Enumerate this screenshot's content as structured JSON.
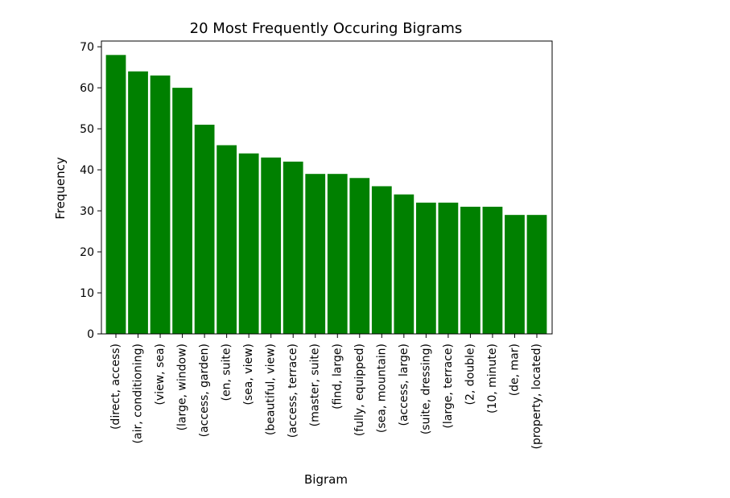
{
  "chart_data": {
    "type": "bar",
    "title": "20 Most Frequently Occuring Bigrams",
    "xlabel": "Bigram",
    "ylabel": "Frequency",
    "ylim": [
      0,
      71.4
    ],
    "yticks": [
      0,
      10,
      20,
      30,
      40,
      50,
      60,
      70
    ],
    "grid": false,
    "legend": "none",
    "bar_color": "#008000",
    "categories": [
      "(direct, access)",
      "(air, conditioning)",
      "(view, sea)",
      "(large, window)",
      "(access, garden)",
      "(en, suite)",
      "(sea, view)",
      "(beautiful, view)",
      "(access, terrace)",
      "(master, suite)",
      "(find, large)",
      "(fully, equipped)",
      "(sea, mountain)",
      "(access, large)",
      "(suite, dressing)",
      "(large, terrace)",
      "(2, double)",
      "(10, minute)",
      "(de, mar)",
      "(property, located)"
    ],
    "values": [
      68,
      64,
      63,
      60,
      51,
      46,
      44,
      43,
      42,
      39,
      39,
      38,
      36,
      34,
      32,
      32,
      31,
      31,
      29,
      29
    ]
  }
}
